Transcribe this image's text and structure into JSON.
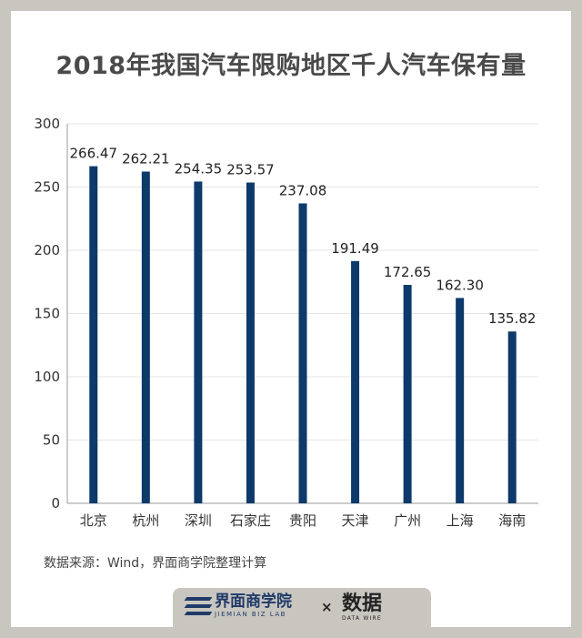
{
  "chart_data": {
    "type": "bar",
    "title": "2018年我国汽车限购地区千人汽车保有量",
    "categories": [
      "北京",
      "杭州",
      "深圳",
      "石家庄",
      "贵阳",
      "天津",
      "广州",
      "上海",
      "海南"
    ],
    "values": [
      266.47,
      262.21,
      254.35,
      253.57,
      237.08,
      191.49,
      172.65,
      162.3,
      135.82
    ],
    "value_labels": [
      "266.47",
      "262.21",
      "254.35",
      "253.57",
      "237.08",
      "191.49",
      "172.65",
      "162.30",
      "135.82"
    ],
    "ylim": [
      0,
      300
    ],
    "yticks": [
      0,
      50,
      100,
      150,
      200,
      250,
      300
    ],
    "grid": true,
    "bar_color": "#0d3a6b"
  },
  "source": "数据来源：Wind，界面商学院整理计算",
  "footer": {
    "brand_left_name": "界面商学院",
    "brand_left_sub": "JIEMIAN BIZ LAB",
    "separator": "×",
    "brand_right_name": "数据",
    "brand_right_sub": "DATA WIRE"
  }
}
